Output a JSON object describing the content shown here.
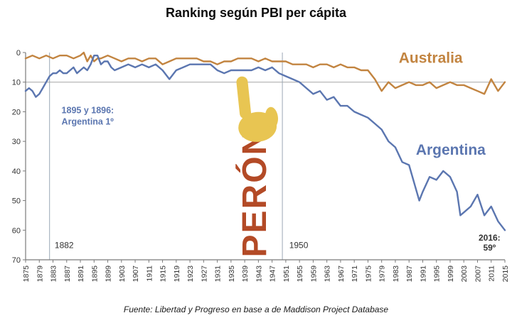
{
  "title": "Ranking según PBI per cápita",
  "footer": "Fuente: Libertad y Progreso en base a de Maddison Project Database",
  "chart_data": {
    "type": "line",
    "title": "Ranking según PBI per cápita",
    "xlabel": "",
    "ylabel": "",
    "xlim": [
      1875,
      2015
    ],
    "ylim": [
      0,
      70
    ],
    "y_axis_note": "ranking, 0 (best) at top increasing downward",
    "grid": "single horizontal reference line at rank 10",
    "legend_position": "inline text labels on lines",
    "axis_color": "#7a7a7a",
    "tick_color": "#333333",
    "y_ticks": [
      0,
      10,
      20,
      30,
      40,
      50,
      60,
      70
    ],
    "x_ticks": [
      1875,
      1879,
      1883,
      1887,
      1891,
      1895,
      1899,
      1903,
      1907,
      1911,
      1915,
      1919,
      1923,
      1927,
      1931,
      1935,
      1939,
      1943,
      1947,
      1951,
      1955,
      1959,
      1963,
      1967,
      1971,
      1975,
      1979,
      1983,
      1987,
      1991,
      1995,
      1999,
      2003,
      2007,
      2011,
      2015
    ],
    "hlines": [
      {
        "y": 10,
        "color": "#a6a6a6"
      }
    ],
    "vlines": [
      {
        "x": 1882,
        "color": "#9aa7b5"
      },
      {
        "x": 1950,
        "color": "#9aa7b5"
      }
    ],
    "series": [
      {
        "name": "Australia",
        "color": "#c28440",
        "x": [
          1875,
          1877,
          1879,
          1881,
          1883,
          1885,
          1887,
          1889,
          1891,
          1892,
          1893,
          1894,
          1895,
          1896,
          1897,
          1899,
          1901,
          1903,
          1905,
          1907,
          1909,
          1911,
          1913,
          1915,
          1917,
          1919,
          1921,
          1923,
          1925,
          1927,
          1929,
          1931,
          1933,
          1935,
          1937,
          1939,
          1941,
          1943,
          1945,
          1947,
          1949,
          1951,
          1953,
          1955,
          1957,
          1959,
          1961,
          1963,
          1965,
          1967,
          1969,
          1971,
          1973,
          1975,
          1977,
          1979,
          1981,
          1983,
          1985,
          1987,
          1989,
          1991,
          1993,
          1995,
          1997,
          1999,
          2001,
          2003,
          2005,
          2007,
          2009,
          2011,
          2013,
          2015
        ],
        "y": [
          2,
          1,
          2,
          1,
          2,
          1,
          1,
          2,
          1,
          0,
          3,
          1,
          3,
          2,
          2,
          1,
          2,
          3,
          2,
          2,
          3,
          2,
          2,
          4,
          3,
          2,
          2,
          2,
          2,
          3,
          3,
          4,
          3,
          3,
          2,
          2,
          2,
          3,
          2,
          3,
          3,
          3,
          4,
          4,
          4,
          5,
          4,
          4,
          5,
          4,
          5,
          5,
          6,
          6,
          9,
          13,
          10,
          12,
          11,
          10,
          11,
          11,
          10,
          12,
          11,
          10,
          11,
          11,
          12,
          13,
          14,
          9,
          13,
          10
        ]
      },
      {
        "name": "Argentina",
        "color": "#5b76b0",
        "x": [
          1875,
          1876,
          1877,
          1878,
          1879,
          1880,
          1881,
          1882,
          1883,
          1884,
          1885,
          1886,
          1887,
          1888,
          1889,
          1890,
          1891,
          1892,
          1893,
          1894,
          1895,
          1896,
          1897,
          1898,
          1899,
          1900,
          1901,
          1903,
          1905,
          1907,
          1909,
          1911,
          1913,
          1915,
          1917,
          1919,
          1921,
          1923,
          1925,
          1927,
          1929,
          1931,
          1933,
          1935,
          1937,
          1939,
          1941,
          1943,
          1945,
          1947,
          1949,
          1951,
          1953,
          1955,
          1957,
          1959,
          1961,
          1963,
          1965,
          1967,
          1969,
          1971,
          1973,
          1975,
          1977,
          1979,
          1981,
          1983,
          1985,
          1987,
          1989,
          1990,
          1991,
          1993,
          1995,
          1997,
          1999,
          2001,
          2002,
          2003,
          2005,
          2007,
          2009,
          2011,
          2013,
          2015
        ],
        "y": [
          13,
          12,
          13,
          15,
          14,
          12,
          10,
          8,
          7,
          7,
          6,
          7,
          7,
          6,
          5,
          7,
          6,
          5,
          6,
          4,
          1,
          1,
          4,
          3,
          3,
          5,
          6,
          5,
          4,
          5,
          4,
          5,
          4,
          6,
          9,
          6,
          5,
          4,
          4,
          4,
          4,
          6,
          7,
          6,
          6,
          6,
          6,
          5,
          6,
          5,
          7,
          8,
          9,
          10,
          12,
          14,
          13,
          16,
          15,
          18,
          18,
          20,
          21,
          22,
          24,
          26,
          30,
          32,
          37,
          38,
          46,
          50,
          47,
          42,
          43,
          40,
          42,
          47,
          55,
          54,
          52,
          48,
          55,
          52,
          57,
          60
        ]
      }
    ],
    "annotations": [
      {
        "id": "note-1895-1896",
        "text": "1895 y 1896:\nArgentina 1º",
        "x": 1885.5,
        "y": 20.5,
        "color": "#5b76b0",
        "size": 12.5,
        "weight": "bold",
        "anchor": "start",
        "line_height": 16
      },
      {
        "id": "label-australia",
        "text": "Australia",
        "x": 1984,
        "y": 3.5,
        "color": "#c28440",
        "size": 21,
        "weight": "bold",
        "anchor": "start"
      },
      {
        "id": "label-argentina",
        "text": "Argentina",
        "x": 1989,
        "y": 34.5,
        "color": "#5b76b0",
        "size": 21,
        "weight": "bold",
        "anchor": "start"
      },
      {
        "id": "label-1882",
        "text": "1882",
        "x": 1883.5,
        "y": 66,
        "color": "#333333",
        "size": 12,
        "anchor": "start"
      },
      {
        "id": "label-1950",
        "text": "1950",
        "x": 1952,
        "y": 66,
        "color": "#333333",
        "size": 12,
        "anchor": "start"
      },
      {
        "id": "note-2016",
        "text": "2016:\n59º",
        "x": 2010.5,
        "y": 63.5,
        "color": "#333333",
        "size": 12,
        "weight": "bold",
        "anchor": "middle",
        "line_height": 14
      },
      {
        "id": "peron-text",
        "text": "PERÓN",
        "x": 1942,
        "y": 47.5,
        "color": "#b34a26",
        "size": 48,
        "weight": "bold",
        "anchor": "middle",
        "rotate": -90,
        "letter_spacing": 2
      },
      {
        "id": "hand-up-icon",
        "icon": "hand-up",
        "x": 1943,
        "y": 21,
        "color": "#e8c552"
      }
    ]
  }
}
